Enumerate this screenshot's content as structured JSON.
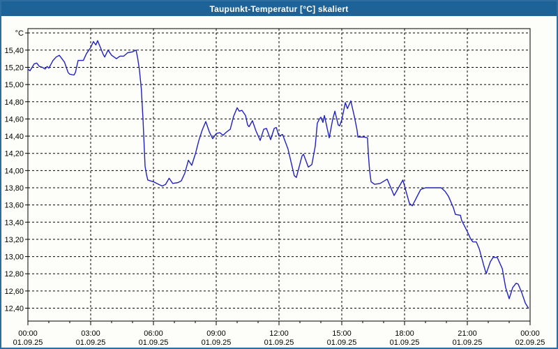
{
  "window": {
    "title": "Taupunkt-Temperatur [°C] skaliert",
    "titlebar_color": "#1d6397",
    "border_color": "#2e6e9e",
    "background_color": "#fdfef9"
  },
  "chart_data": {
    "type": "line",
    "title": "Taupunkt-Temperatur [°C] skaliert",
    "unit": "°C",
    "line_color": "#2020c0",
    "grid": "dashed-black",
    "legend": "none",
    "xlim_hours": [
      0,
      24
    ],
    "ylim": [
      12.25,
      15.65
    ],
    "y_axis": {
      "tick_step": 0.2,
      "labels": [
        {
          "v": 15.6,
          "t": "°C"
        },
        {
          "v": 15.4,
          "t": "15,40"
        },
        {
          "v": 15.2,
          "t": "15,20"
        },
        {
          "v": 15.0,
          "t": "15,00"
        },
        {
          "v": 14.8,
          "t": "14,80"
        },
        {
          "v": 14.6,
          "t": "14,60"
        },
        {
          "v": 14.4,
          "t": "14,40"
        },
        {
          "v": 14.2,
          "t": "14,20"
        },
        {
          "v": 14.0,
          "t": "14,00"
        },
        {
          "v": 13.8,
          "t": "13,80"
        },
        {
          "v": 13.6,
          "t": "13,60"
        },
        {
          "v": 13.4,
          "t": "13,40"
        },
        {
          "v": 13.2,
          "t": "13,20"
        },
        {
          "v": 13.0,
          "t": "13,00"
        },
        {
          "v": 12.8,
          "t": "12,80"
        },
        {
          "v": 12.6,
          "t": "12,60"
        },
        {
          "v": 12.4,
          "t": "12,40"
        }
      ]
    },
    "x_axis": {
      "minor_tick_every_hours": 1,
      "major_ticks": [
        {
          "h": 0,
          "time": "00:00",
          "date": "01.09.25"
        },
        {
          "h": 3,
          "time": "03:00",
          "date": "01.09.25"
        },
        {
          "h": 6,
          "time": "06:00",
          "date": "01.09.25"
        },
        {
          "h": 9,
          "time": "09:00",
          "date": "01.09.25"
        },
        {
          "h": 12,
          "time": "12:00",
          "date": "01.09.25"
        },
        {
          "h": 15,
          "time": "15:00",
          "date": "01.09.25"
        },
        {
          "h": 18,
          "time": "18:00",
          "date": "01.09.25"
        },
        {
          "h": 21,
          "time": "21:00",
          "date": "01.09.25"
        },
        {
          "h": 24,
          "time": "00:00",
          "date": "02.09.25"
        }
      ]
    },
    "series": [
      {
        "name": "Taupunkt-Temperatur",
        "points": [
          [
            0.0,
            15.18
          ],
          [
            0.1,
            15.16
          ],
          [
            0.3,
            15.24
          ],
          [
            0.42,
            15.25
          ],
          [
            0.55,
            15.21
          ],
          [
            0.7,
            15.2
          ],
          [
            0.82,
            15.18
          ],
          [
            0.92,
            15.21
          ],
          [
            1.0,
            15.19
          ],
          [
            1.2,
            15.28
          ],
          [
            1.35,
            15.32
          ],
          [
            1.5,
            15.34
          ],
          [
            1.75,
            15.26
          ],
          [
            1.92,
            15.14
          ],
          [
            2.0,
            15.12
          ],
          [
            2.2,
            15.11
          ],
          [
            2.27,
            15.14
          ],
          [
            2.4,
            15.28
          ],
          [
            2.65,
            15.28
          ],
          [
            2.8,
            15.36
          ],
          [
            3.0,
            15.43
          ],
          [
            3.13,
            15.5
          ],
          [
            3.25,
            15.46
          ],
          [
            3.33,
            15.51
          ],
          [
            3.45,
            15.44
          ],
          [
            3.6,
            15.35
          ],
          [
            3.67,
            15.32
          ],
          [
            3.83,
            15.4
          ],
          [
            4.0,
            15.34
          ],
          [
            4.23,
            15.3
          ],
          [
            4.4,
            15.33
          ],
          [
            4.58,
            15.33
          ],
          [
            4.77,
            15.37
          ],
          [
            5.0,
            15.38
          ],
          [
            5.17,
            15.4
          ],
          [
            5.25,
            15.3
          ],
          [
            5.33,
            15.17
          ],
          [
            5.42,
            14.95
          ],
          [
            5.5,
            14.6
          ],
          [
            5.6,
            14.05
          ],
          [
            5.67,
            13.95
          ],
          [
            5.73,
            13.89
          ],
          [
            6.0,
            13.87
          ],
          [
            6.25,
            13.84
          ],
          [
            6.42,
            13.82
          ],
          [
            6.58,
            13.84
          ],
          [
            6.75,
            13.91
          ],
          [
            6.92,
            13.85
          ],
          [
            7.17,
            13.86
          ],
          [
            7.33,
            13.88
          ],
          [
            7.5,
            13.97
          ],
          [
            7.67,
            14.12
          ],
          [
            7.83,
            14.06
          ],
          [
            8.0,
            14.19
          ],
          [
            8.17,
            14.35
          ],
          [
            8.33,
            14.47
          ],
          [
            8.5,
            14.57
          ],
          [
            8.67,
            14.45
          ],
          [
            8.83,
            14.37
          ],
          [
            9.0,
            14.43
          ],
          [
            9.17,
            14.44
          ],
          [
            9.33,
            14.41
          ],
          [
            9.5,
            14.45
          ],
          [
            9.67,
            14.48
          ],
          [
            9.83,
            14.63
          ],
          [
            10.0,
            14.73
          ],
          [
            10.1,
            14.69
          ],
          [
            10.23,
            14.7
          ],
          [
            10.4,
            14.64
          ],
          [
            10.5,
            14.53
          ],
          [
            10.57,
            14.51
          ],
          [
            10.73,
            14.58
          ],
          [
            10.9,
            14.46
          ],
          [
            11.1,
            14.35
          ],
          [
            11.27,
            14.48
          ],
          [
            11.4,
            14.49
          ],
          [
            11.6,
            14.36
          ],
          [
            11.77,
            14.49
          ],
          [
            11.87,
            14.5
          ],
          [
            12.0,
            14.4
          ],
          [
            12.17,
            14.42
          ],
          [
            12.43,
            14.25
          ],
          [
            12.73,
            13.94
          ],
          [
            12.83,
            13.92
          ],
          [
            13.1,
            14.17
          ],
          [
            13.17,
            14.19
          ],
          [
            13.4,
            14.04
          ],
          [
            13.57,
            14.07
          ],
          [
            13.73,
            14.28
          ],
          [
            13.83,
            14.55
          ],
          [
            13.93,
            14.6
          ],
          [
            14.0,
            14.62
          ],
          [
            14.1,
            14.56
          ],
          [
            14.17,
            14.64
          ],
          [
            14.33,
            14.46
          ],
          [
            14.4,
            14.38
          ],
          [
            14.57,
            14.6
          ],
          [
            14.67,
            14.69
          ],
          [
            14.83,
            14.53
          ],
          [
            14.9,
            14.52
          ],
          [
            15.0,
            14.59
          ],
          [
            15.17,
            14.79
          ],
          [
            15.27,
            14.72
          ],
          [
            15.43,
            14.81
          ],
          [
            15.6,
            14.63
          ],
          [
            15.73,
            14.47
          ],
          [
            15.77,
            14.39
          ],
          [
            16.07,
            14.39
          ],
          [
            16.23,
            14.38
          ],
          [
            16.27,
            14.19
          ],
          [
            16.33,
            14.0
          ],
          [
            16.4,
            13.87
          ],
          [
            16.57,
            13.84
          ],
          [
            16.83,
            13.85
          ],
          [
            17.17,
            13.9
          ],
          [
            17.5,
            13.71
          ],
          [
            17.92,
            13.89
          ],
          [
            18.23,
            13.62
          ],
          [
            18.37,
            13.59
          ],
          [
            18.77,
            13.78
          ],
          [
            19.0,
            13.8
          ],
          [
            19.75,
            13.8
          ],
          [
            19.93,
            13.76
          ],
          [
            20.1,
            13.7
          ],
          [
            20.33,
            13.57
          ],
          [
            20.43,
            13.49
          ],
          [
            20.67,
            13.48
          ],
          [
            20.73,
            13.42
          ],
          [
            21.0,
            13.29
          ],
          [
            21.17,
            13.2
          ],
          [
            21.27,
            13.17
          ],
          [
            21.43,
            13.17
          ],
          [
            21.57,
            13.09
          ],
          [
            21.77,
            12.91
          ],
          [
            21.9,
            12.8
          ],
          [
            22.1,
            12.94
          ],
          [
            22.23,
            12.99
          ],
          [
            22.43,
            12.99
          ],
          [
            22.67,
            12.86
          ],
          [
            22.83,
            12.64
          ],
          [
            23.0,
            12.51
          ],
          [
            23.17,
            12.64
          ],
          [
            23.33,
            12.69
          ],
          [
            23.43,
            12.68
          ],
          [
            23.6,
            12.58
          ],
          [
            23.77,
            12.46
          ],
          [
            23.92,
            12.4
          ]
        ]
      }
    ]
  }
}
